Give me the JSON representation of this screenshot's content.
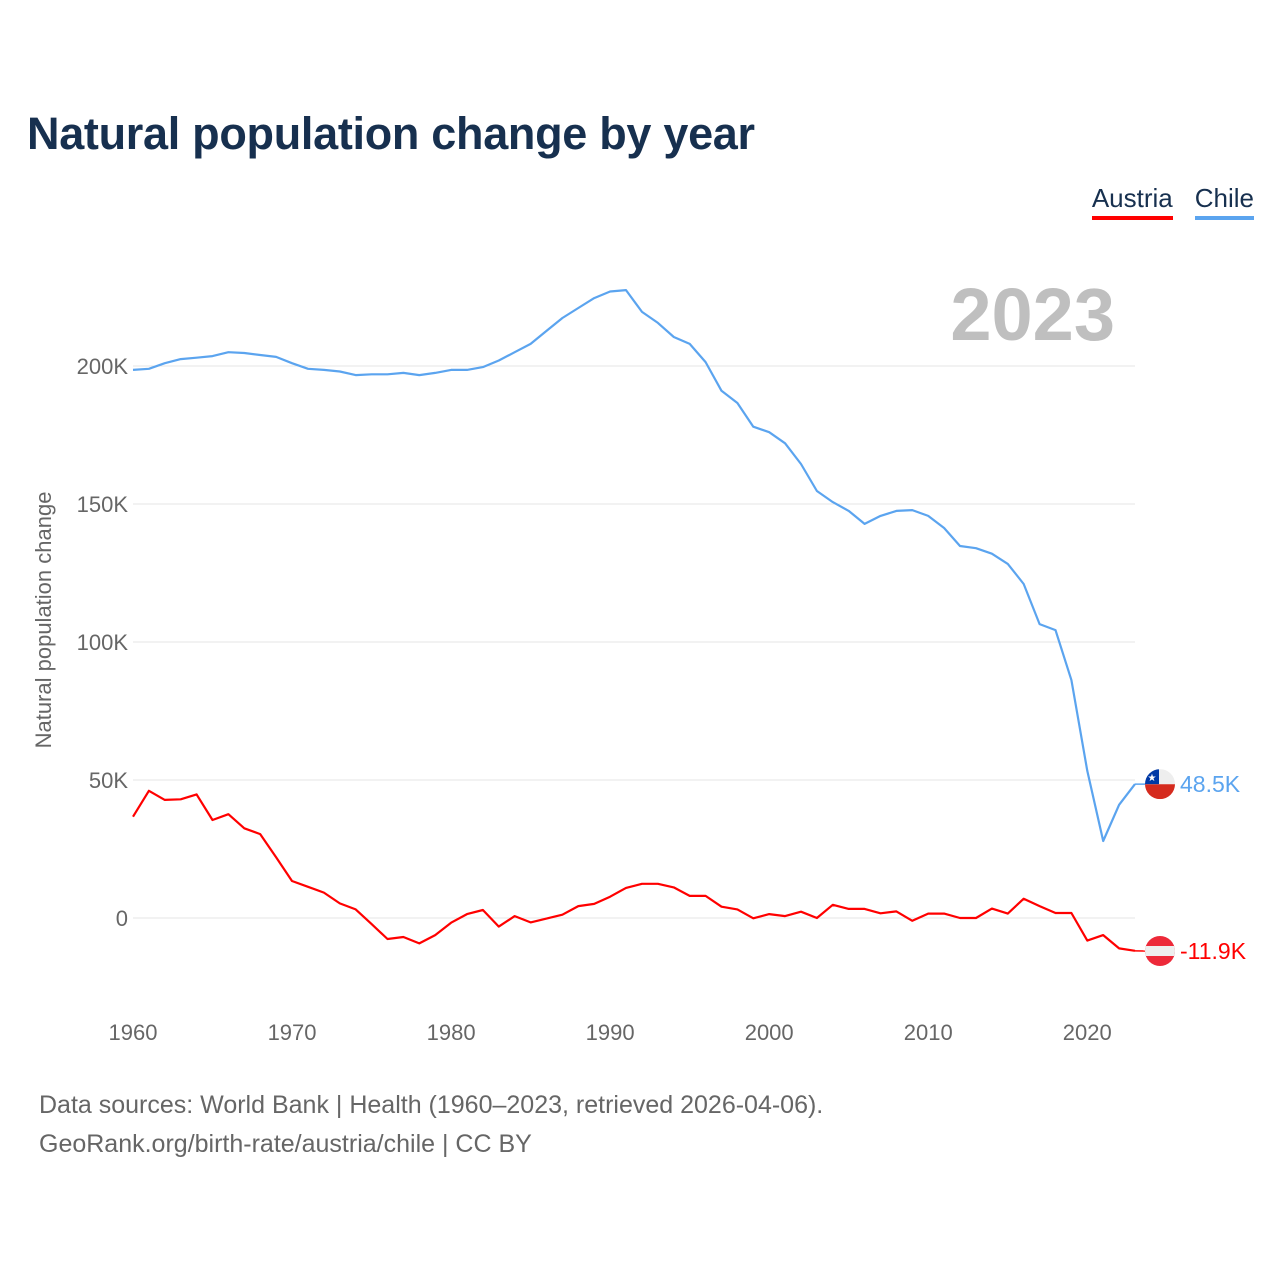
{
  "title": "Natural population change by year",
  "year_label": "2023",
  "footer": {
    "line1": "Data sources: World Bank | Health (1960–2023, retrieved 2026-04-06).",
    "line2": "GeoRank.org/birth-rate/austria/chile | CC BY"
  },
  "chart_data": {
    "type": "line",
    "title": "Natural population change by year",
    "xlabel": "",
    "ylabel": "Natural population change",
    "xlim": [
      1960,
      2023
    ],
    "ylim": [
      -25,
      250
    ],
    "grid": true,
    "legend_position": "top-right",
    "x_ticks": [
      1960,
      1970,
      1980,
      1990,
      2000,
      2010,
      2020
    ],
    "y_ticks": [
      {
        "value": 0,
        "label": "0"
      },
      {
        "value": 50,
        "label": "50K"
      },
      {
        "value": 100,
        "label": "100K"
      },
      {
        "value": 150,
        "label": "150K"
      },
      {
        "value": 200,
        "label": "200K"
      }
    ],
    "x_start": 1960,
    "series": [
      {
        "name": "Austria",
        "color": "#ff0000",
        "end_label": "-11.9K",
        "flag": "austria-flag",
        "values": [
          36.7,
          46.1,
          42.8,
          43,
          44.8,
          35.5,
          37.6,
          32.5,
          30.4,
          22,
          13.4,
          11.3,
          9.2,
          5.3,
          3.1,
          -2.2,
          -7.6,
          -6.9,
          -9.2,
          -6.2,
          -1.7,
          1.4,
          2.9,
          -3.1,
          0.7,
          -1.6,
          -0.2,
          1.2,
          4.3,
          5.1,
          7.7,
          10.9,
          12.4,
          12.4,
          11.1,
          8,
          8,
          4.1,
          3.1,
          -0.1,
          1.4,
          0.7,
          2.3,
          0,
          4.8,
          3.3,
          3.3,
          1.7,
          2.4,
          -1,
          1.6,
          1.6,
          0,
          0,
          3.4,
          1.6,
          7,
          4.3,
          1.8,
          1.8,
          -8.2,
          -6.2,
          -11,
          -11.9
        ]
      },
      {
        "name": "Chile",
        "color": "#5ba4ef",
        "end_label": "48.5K",
        "flag": "chile-flag",
        "values": [
          198.6,
          199,
          201,
          202.5,
          203,
          203.6,
          205,
          204.7,
          204,
          203.3,
          201,
          199,
          198.6,
          198,
          196.7,
          197,
          197,
          197.5,
          196.7,
          197.5,
          198.6,
          198.6,
          199.6,
          202,
          205,
          208,
          212.7,
          217.4,
          221,
          224.6,
          227,
          227.5,
          219.6,
          215.6,
          210.5,
          208,
          201.4,
          191,
          186.6,
          178,
          176,
          172,
          164.5,
          154.7,
          150.7,
          147.5,
          142.8,
          145.7,
          147.5,
          147.8,
          145.7,
          141.3,
          134.8,
          134,
          132,
          128.3,
          121,
          106.5,
          104.3,
          86.2,
          53.3,
          27.9,
          41,
          48.5
        ]
      }
    ]
  }
}
